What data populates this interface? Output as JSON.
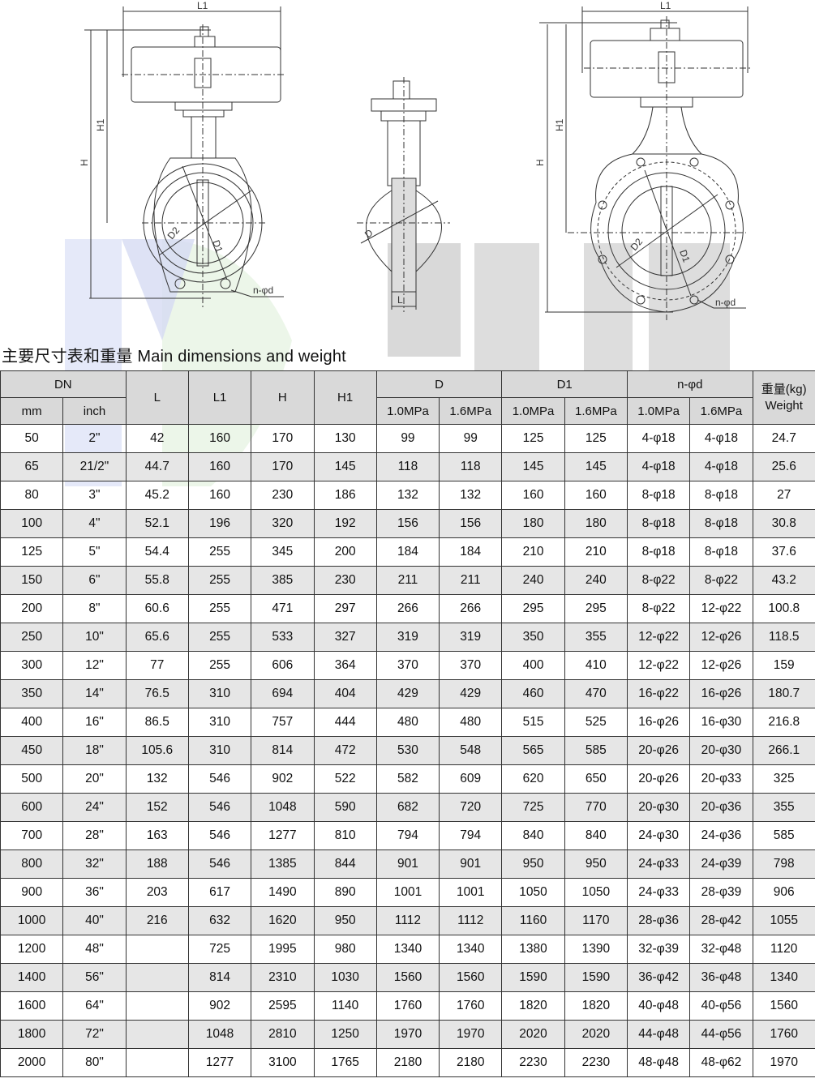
{
  "drawings": {
    "left_labels": {
      "l1": "L1",
      "h": "H",
      "h1": "H1",
      "d1": "D1",
      "d2": "D2",
      "nd": "n-φd"
    },
    "middle_labels": {
      "d": "D",
      "l": "L"
    },
    "right_labels": {
      "l1": "L1",
      "h": "H",
      "h1": "H1",
      "d1": "D1",
      "d2": "D2",
      "nd": "n-φd"
    }
  },
  "watermark": {
    "text": "KUANG YI"
  },
  "title": "主要尺寸表和重量 Main dimensions and weight",
  "table": {
    "headers": {
      "dn": "DN",
      "mm": "mm",
      "inch": "inch",
      "l": "L",
      "l1": "L1",
      "h": "H",
      "h1": "H1",
      "d": "D",
      "d1": "D1",
      "nphid": "n-φd",
      "p10": "1.0MPa",
      "p16": "1.6MPa",
      "weight_cn": "重量(kg)",
      "weight_en": "Weight"
    },
    "rows": [
      [
        "50",
        "2\"",
        "42",
        "160",
        "170",
        "130",
        "99",
        "99",
        "125",
        "125",
        "4-φ18",
        "4-φ18",
        "24.7"
      ],
      [
        "65",
        "21/2\"",
        "44.7",
        "160",
        "170",
        "145",
        "118",
        "118",
        "145",
        "145",
        "4-φ18",
        "4-φ18",
        "25.6"
      ],
      [
        "80",
        "3\"",
        "45.2",
        "160",
        "230",
        "186",
        "132",
        "132",
        "160",
        "160",
        "8-φ18",
        "8-φ18",
        "27"
      ],
      [
        "100",
        "4\"",
        "52.1",
        "196",
        "320",
        "192",
        "156",
        "156",
        "180",
        "180",
        "8-φ18",
        "8-φ18",
        "30.8"
      ],
      [
        "125",
        "5\"",
        "54.4",
        "255",
        "345",
        "200",
        "184",
        "184",
        "210",
        "210",
        "8-φ18",
        "8-φ18",
        "37.6"
      ],
      [
        "150",
        "6\"",
        "55.8",
        "255",
        "385",
        "230",
        "211",
        "211",
        "240",
        "240",
        "8-φ22",
        "8-φ22",
        "43.2"
      ],
      [
        "200",
        "8\"",
        "60.6",
        "255",
        "471",
        "297",
        "266",
        "266",
        "295",
        "295",
        "8-φ22",
        "12-φ22",
        "100.8"
      ],
      [
        "250",
        "10\"",
        "65.6",
        "255",
        "533",
        "327",
        "319",
        "319",
        "350",
        "355",
        "12-φ22",
        "12-φ26",
        "118.5"
      ],
      [
        "300",
        "12\"",
        "77",
        "255",
        "606",
        "364",
        "370",
        "370",
        "400",
        "410",
        "12-φ22",
        "12-φ26",
        "159"
      ],
      [
        "350",
        "14\"",
        "76.5",
        "310",
        "694",
        "404",
        "429",
        "429",
        "460",
        "470",
        "16-φ22",
        "16-φ26",
        "180.7"
      ],
      [
        "400",
        "16\"",
        "86.5",
        "310",
        "757",
        "444",
        "480",
        "480",
        "515",
        "525",
        "16-φ26",
        "16-φ30",
        "216.8"
      ],
      [
        "450",
        "18\"",
        "105.6",
        "310",
        "814",
        "472",
        "530",
        "548",
        "565",
        "585",
        "20-φ26",
        "20-φ30",
        "266.1"
      ],
      [
        "500",
        "20\"",
        "132",
        "546",
        "902",
        "522",
        "582",
        "609",
        "620",
        "650",
        "20-φ26",
        "20-φ33",
        "325"
      ],
      [
        "600",
        "24\"",
        "152",
        "546",
        "1048",
        "590",
        "682",
        "720",
        "725",
        "770",
        "20-φ30",
        "20-φ36",
        "355"
      ],
      [
        "700",
        "28\"",
        "163",
        "546",
        "1277",
        "810",
        "794",
        "794",
        "840",
        "840",
        "24-φ30",
        "24-φ36",
        "585"
      ],
      [
        "800",
        "32\"",
        "188",
        "546",
        "1385",
        "844",
        "901",
        "901",
        "950",
        "950",
        "24-φ33",
        "24-φ39",
        "798"
      ],
      [
        "900",
        "36\"",
        "203",
        "617",
        "1490",
        "890",
        "1001",
        "1001",
        "1050",
        "1050",
        "24-φ33",
        "28-φ39",
        "906"
      ],
      [
        "1000",
        "40\"",
        "216",
        "632",
        "1620",
        "950",
        "1112",
        "1112",
        "1160",
        "1170",
        "28-φ36",
        "28-φ42",
        "1055"
      ],
      [
        "1200",
        "48\"",
        "",
        "725",
        "1995",
        "980",
        "1340",
        "1340",
        "1380",
        "1390",
        "32-φ39",
        "32-φ48",
        "1120"
      ],
      [
        "1400",
        "56\"",
        "",
        "814",
        "2310",
        "1030",
        "1560",
        "1560",
        "1590",
        "1590",
        "36-φ42",
        "36-φ48",
        "1340"
      ],
      [
        "1600",
        "64\"",
        "",
        "902",
        "2595",
        "1140",
        "1760",
        "1760",
        "1820",
        "1820",
        "40-φ48",
        "40-φ56",
        "1560"
      ],
      [
        "1800",
        "72\"",
        "",
        "1048",
        "2810",
        "1250",
        "1970",
        "1970",
        "2020",
        "2020",
        "44-φ48",
        "44-φ56",
        "1760"
      ],
      [
        "2000",
        "80\"",
        "",
        "1277",
        "3100",
        "1765",
        "2180",
        "2180",
        "2230",
        "2230",
        "48-φ48",
        "48-φ62",
        "1970"
      ]
    ]
  }
}
